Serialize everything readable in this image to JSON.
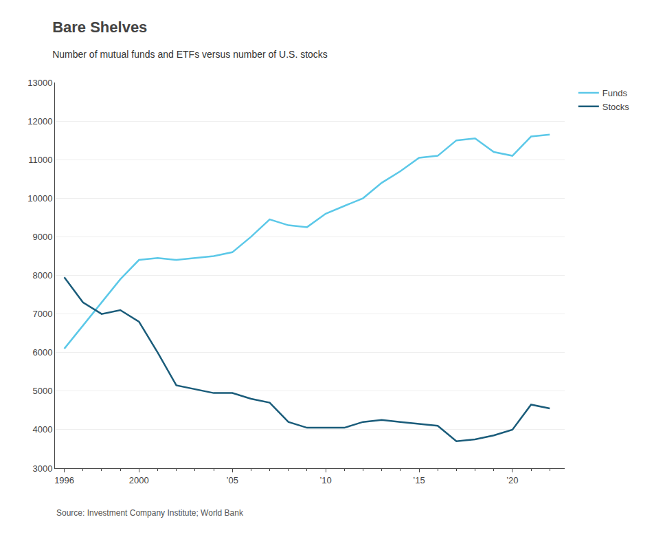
{
  "chart_data": {
    "type": "line",
    "title": "Bare Shelves",
    "subtitle": "Number of mutual funds and ETFs versus number of U.S. stocks",
    "source": "Source: Investment Company Institute; World Bank",
    "x": [
      1996,
      1997,
      1998,
      1999,
      2000,
      2001,
      2002,
      2003,
      2004,
      2005,
      2006,
      2007,
      2008,
      2009,
      2010,
      2011,
      2012,
      2013,
      2014,
      2015,
      2016,
      2017,
      2018,
      2019,
      2020,
      2021,
      2022
    ],
    "series": [
      {
        "name": "Funds",
        "color": "#5bc8e8",
        "values": [
          6100,
          6700,
          7300,
          7900,
          8400,
          8450,
          8400,
          8450,
          8500,
          8600,
          9000,
          9450,
          9300,
          9250,
          9600,
          9800,
          10000,
          10400,
          10700,
          11050,
          11100,
          11500,
          11550,
          11200,
          11100,
          11600,
          11650
        ]
      },
      {
        "name": "Stocks",
        "color": "#1a5c7a",
        "values": [
          7950,
          7300,
          7000,
          7100,
          6800,
          6000,
          5150,
          5050,
          4950,
          4950,
          4800,
          4700,
          4200,
          4050,
          4050,
          4050,
          4200,
          4250,
          4200,
          4150,
          4100,
          3700,
          3750,
          3850,
          4000,
          4650,
          4550
        ]
      }
    ],
    "xlim": [
      1995.5,
      2022.8
    ],
    "xticks": [
      1996,
      2000,
      {
        "value": 2005,
        "label": "’05"
      },
      {
        "value": 2010,
        "label": "’10"
      },
      {
        "value": 2015,
        "label": "’15"
      },
      {
        "value": 2020,
        "label": "’20"
      }
    ],
    "ylim": [
      3000,
      13000
    ],
    "yticks": [
      3000,
      4000,
      5000,
      6000,
      7000,
      8000,
      9000,
      10000,
      11000,
      12000,
      13000
    ],
    "grid": true,
    "legend": "right"
  }
}
